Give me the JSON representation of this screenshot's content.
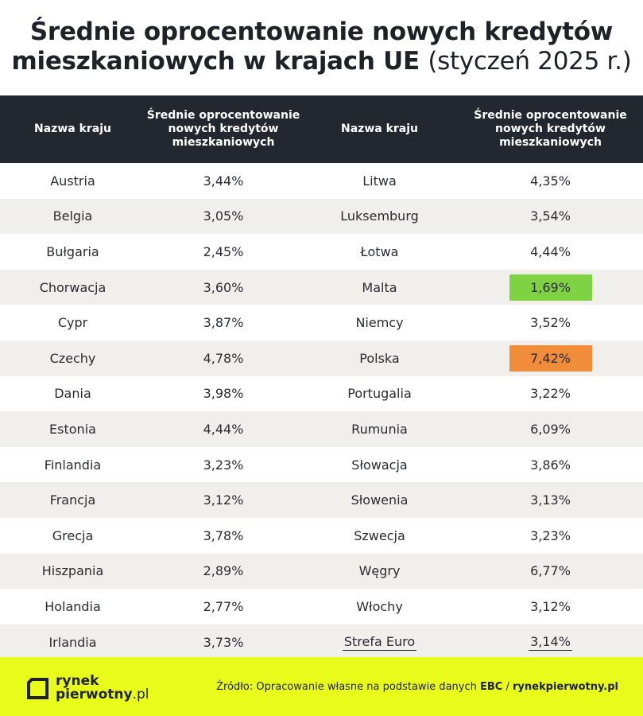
{
  "chart_data": {
    "type": "table",
    "title_main": "Średnie oprocentowanie nowych kredytów mieszkaniowych w krajach UE",
    "title_suffix": "(styczeń 2025 r.)",
    "columns": [
      "Nazwa kraju",
      "Średnie oprocentowanie nowych kredytów mieszkaniowych",
      "Nazwa kraju",
      "Średnie oprocentowanie nowych kredytów mieszkaniowych"
    ],
    "left_rows": [
      {
        "country": "Austria",
        "value": "3,44%"
      },
      {
        "country": "Belgia",
        "value": "3,05%"
      },
      {
        "country": "Bułgaria",
        "value": "2,45%"
      },
      {
        "country": "Chorwacja",
        "value": "3,60%"
      },
      {
        "country": "Cypr",
        "value": "3,87%"
      },
      {
        "country": "Czechy",
        "value": "4,78%"
      },
      {
        "country": "Dania",
        "value": "3,98%"
      },
      {
        "country": "Estonia",
        "value": "4,44%"
      },
      {
        "country": "Finlandia",
        "value": "3,23%"
      },
      {
        "country": "Francja",
        "value": "3,12%"
      },
      {
        "country": "Grecja",
        "value": "3,78%"
      },
      {
        "country": "Hiszpania",
        "value": "2,89%"
      },
      {
        "country": "Holandia",
        "value": "2,77%"
      },
      {
        "country": "Irlandia",
        "value": "3,73%"
      }
    ],
    "right_rows": [
      {
        "country": "Litwa",
        "value": "4,35%"
      },
      {
        "country": "Luksemburg",
        "value": "3,54%"
      },
      {
        "country": "Łotwa",
        "value": "4,44%"
      },
      {
        "country": "Malta",
        "value": "1,69%",
        "highlight": "#7fd343"
      },
      {
        "country": "Niemcy",
        "value": "3,52%"
      },
      {
        "country": "Polska",
        "value": "7,42%",
        "highlight": "#f08c3a"
      },
      {
        "country": "Portugalia",
        "value": "3,22%"
      },
      {
        "country": "Rumunia",
        "value": "6,09%"
      },
      {
        "country": "Słowacja",
        "value": "3,86%"
      },
      {
        "country": "Słowenia",
        "value": "3,13%"
      },
      {
        "country": "Szwecja",
        "value": "3,23%"
      },
      {
        "country": "Węgry",
        "value": "6,77%"
      },
      {
        "country": "Włochy",
        "value": "3,12%"
      },
      {
        "country": "Strefa Euro",
        "value": "3,14%",
        "underline": true
      }
    ]
  },
  "header": {
    "col1": "Nazwa kraju",
    "col2": "Średnie oprocentowanie nowych kredytów mieszkaniowych",
    "col3": "Nazwa kraju",
    "col4": "Średnie oprocentowanie nowych kredytów mieszkaniowych"
  },
  "footer": {
    "logo_line1": "rynek",
    "logo_line2": "pierwotny",
    "logo_tld": ".pl",
    "source_prefix": "Źródło: Opracowanie własne na podstawie danych",
    "source_ebc": "EBC",
    "source_sep": "/",
    "source_site": "rynekpierwotny.pl"
  },
  "colors": {
    "header_bg": "#232730",
    "alt_row": "#f1efeb",
    "footer_bg": "#e8fb1a",
    "low_highlight": "#7fd343",
    "high_highlight": "#f08c3a"
  }
}
